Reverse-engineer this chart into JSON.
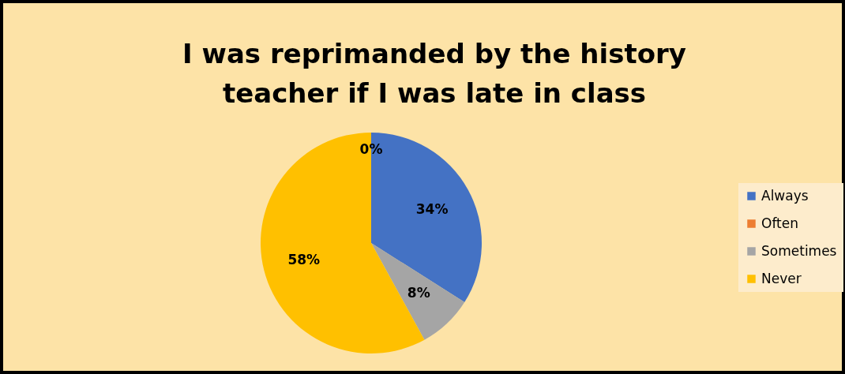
{
  "chart_data": {
    "type": "pie",
    "title": "I was reprimanded by the history teacher if I was late in class",
    "categories": [
      "Always",
      "Often",
      "Sometimes",
      "Never"
    ],
    "values": [
      34,
      0,
      8,
      58
    ],
    "colors": [
      "#4472c4",
      "#ed7d31",
      "#a5a5a5",
      "#ffc000"
    ],
    "value_labels": [
      "34%",
      "0%",
      "8%",
      "58%"
    ],
    "legend": "right"
  }
}
